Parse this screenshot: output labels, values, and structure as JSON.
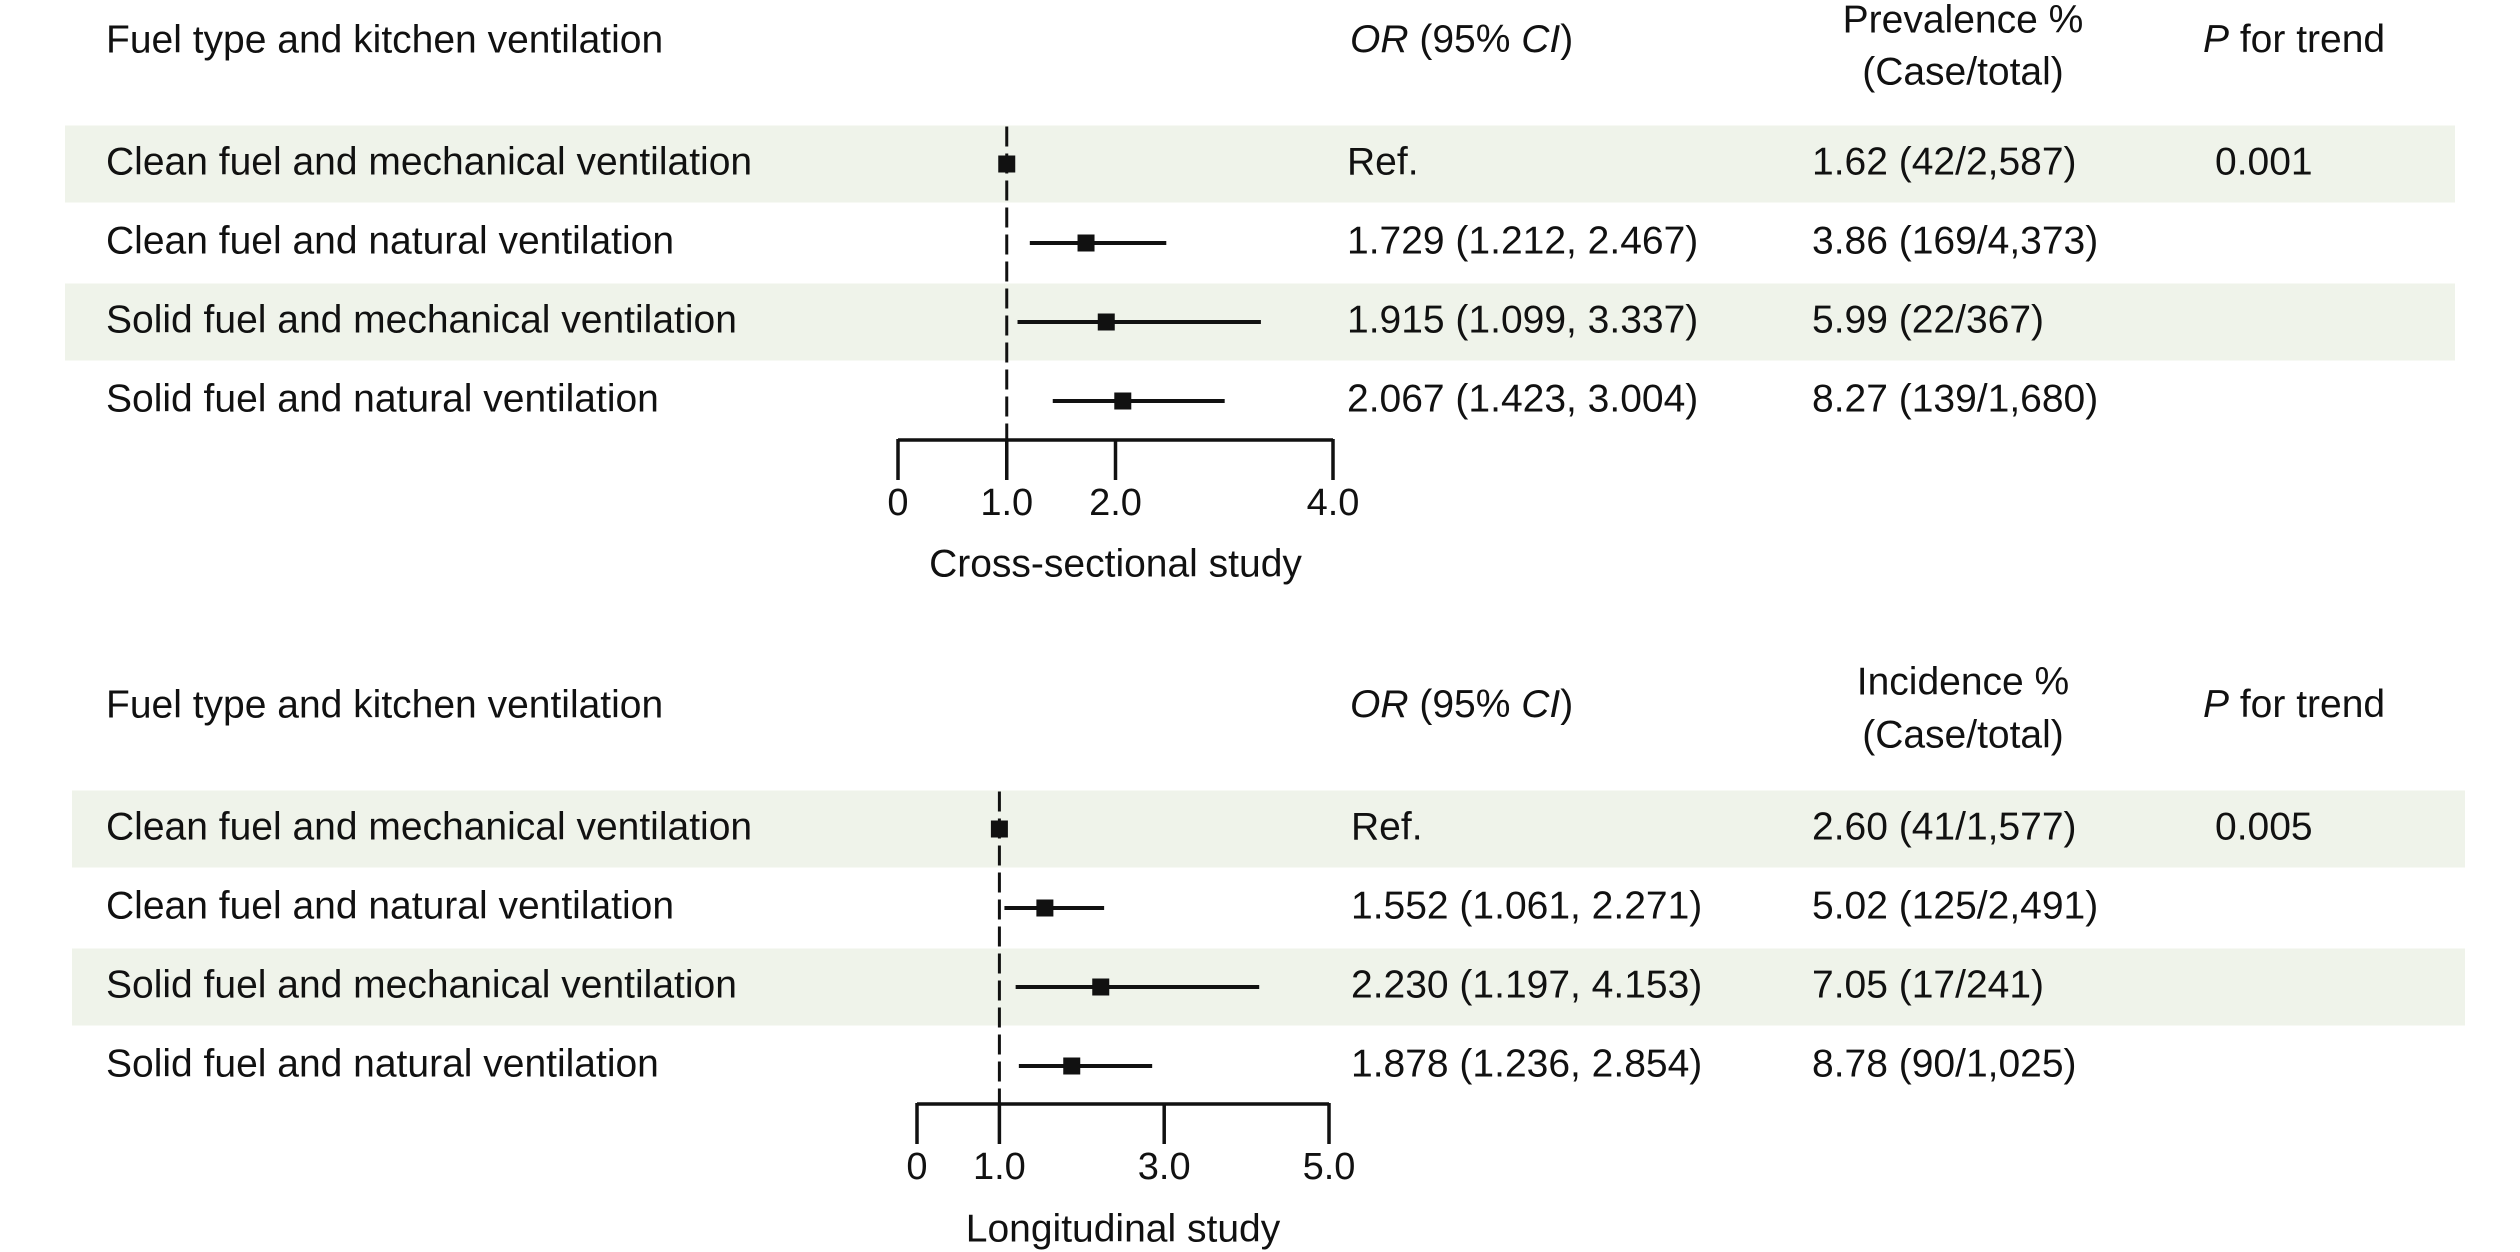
{
  "chart_data": [
    {
      "type": "forest",
      "xlabel": "Cross-sectional study",
      "xlim": [
        0,
        4.0
      ],
      "ticks": [
        0,
        1.0,
        2.0,
        4.0
      ],
      "tick_labels": [
        "0",
        "1.0",
        "2.0",
        "4.0"
      ],
      "reference_value": 1.0,
      "headers": {
        "label": "Fuel type and kitchen ventilation",
        "or_italic": "OR",
        "or_mid": " (95% ",
        "or_ci_italic": "CI",
        "or_end": ")",
        "rate_line1": "Prevalence %",
        "rate_line2": "(Case/total)",
        "p_italic": "P",
        "p_rest": " for trend"
      },
      "rows": [
        {
          "label": "Clean fuel and mechanical ventilation",
          "or": 1.0,
          "lower": 1.0,
          "upper": 1.0,
          "or_text": "Ref.",
          "rate_text": "1.62 (42/2,587)",
          "p_text": "0.001",
          "shaded": true
        },
        {
          "label": "Clean fuel and natural ventilation",
          "or": 1.729,
          "lower": 1.212,
          "upper": 2.467,
          "or_text": "1.729 (1.212, 2.467)",
          "rate_text": "3.86 (169/4,373)",
          "p_text": "",
          "shaded": false
        },
        {
          "label": "Solid fuel and mechanical ventilation",
          "or": 1.915,
          "lower": 1.099,
          "upper": 3.337,
          "or_text": "1.915 (1.099, 3.337)",
          "rate_text": "5.99 (22/367)",
          "p_text": "",
          "shaded": true
        },
        {
          "label": "Solid fuel and natural ventilation",
          "or": 2.067,
          "lower": 1.423,
          "upper": 3.004,
          "or_text": "2.067 (1.423, 3.004)",
          "rate_text": "8.27 (139/1,680)",
          "p_text": "",
          "shaded": false
        }
      ]
    },
    {
      "type": "forest",
      "xlabel": "Longitudinal study",
      "xlim": [
        0,
        5.0
      ],
      "ticks": [
        0,
        1.0,
        3.0,
        5.0
      ],
      "tick_labels": [
        "0",
        "1.0",
        "3.0",
        "5.0"
      ],
      "reference_value": 1.0,
      "headers": {
        "label": "Fuel type and kitchen ventilation",
        "or_italic": "OR",
        "or_mid": " (95% ",
        "or_ci_italic": "CI",
        "or_end": ")",
        "rate_line1": "Incidence %",
        "rate_line2": "(Case/total)",
        "p_italic": "P",
        "p_rest": " for trend"
      },
      "rows": [
        {
          "label": "Clean fuel and mechanical ventilation",
          "or": 1.0,
          "lower": 1.0,
          "upper": 1.0,
          "or_text": "Ref.",
          "rate_text": "2.60 (41/1,577)",
          "p_text": "0.005",
          "shaded": true
        },
        {
          "label": "Clean fuel and natural ventilation",
          "or": 1.552,
          "lower": 1.061,
          "upper": 2.271,
          "or_text": "1.552 (1.061, 2.271)",
          "rate_text": "5.02 (125/2,491)",
          "p_text": "",
          "shaded": false
        },
        {
          "label": "Solid fuel and mechanical ventilation",
          "or": 2.23,
          "lower": 1.197,
          "upper": 4.153,
          "or_text": "2.230 (1.197, 4.153)",
          "rate_text": "7.05 (17/241)",
          "p_text": "",
          "shaded": true
        },
        {
          "label": "Solid fuel and natural ventilation",
          "or": 1.878,
          "lower": 1.236,
          "upper": 2.854,
          "or_text": "1.878 (1.236, 2.854)",
          "rate_text": "8.78 (90/1,025)",
          "p_text": "",
          "shaded": false
        }
      ]
    }
  ],
  "colors": {
    "row_shade": "#eff3ea",
    "ink": "#111111",
    "background": "#ffffff"
  }
}
